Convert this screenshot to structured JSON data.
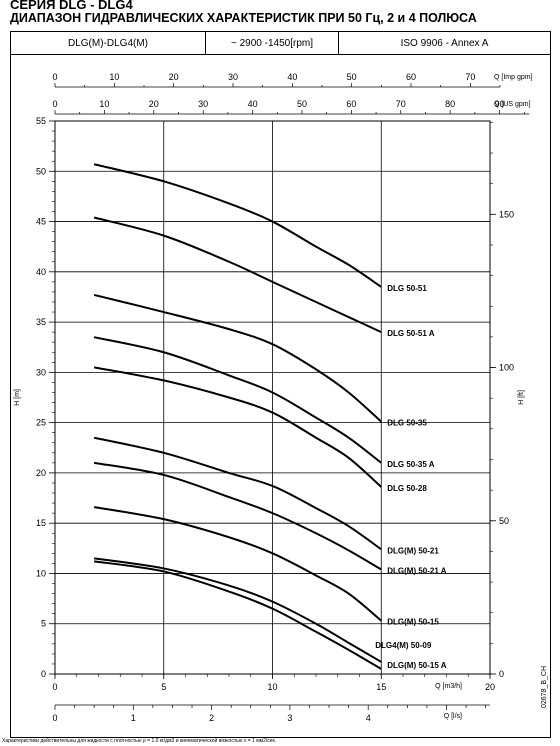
{
  "title": "СЕРИЯ DLG - DLG4",
  "subtitle": "ДИАПАЗОН ГИДРАВЛИЧЕСКИХ ХАРАКТЕРИСТИК ПРИ 50 Гц, 2 и 4 ПОЛЮСА",
  "header": {
    "model": "DLG(M)-DLG4(M)",
    "speed": "~ 2900 -1450[rpm]",
    "standard": "ISO 9906 - Annex A"
  },
  "footnote": "Характеристики действительны для жидкости с плотностью ρ = 1.0 кг/дм3 и кинематической вязкостью ν = 1 мм2/сек.",
  "drawing_code": "02678_B_CH",
  "chart_data": {
    "type": "line",
    "xlabel": "Q [m3/h]",
    "ylabel": "H [m]",
    "xlim": [
      0,
      20
    ],
    "ylim": [
      0,
      55
    ],
    "x_ticks": [
      "0",
      "5",
      "10",
      "15",
      "20"
    ],
    "y_ticks": [
      "0",
      "5",
      "10",
      "15",
      "20",
      "25",
      "30",
      "35",
      "40",
      "45",
      "50",
      "55"
    ],
    "grid": true,
    "right_axis": {
      "label": "H [ft]",
      "ticks": [
        "0",
        "50",
        "100",
        "150"
      ],
      "values": [
        0,
        50,
        100,
        150
      ]
    },
    "top_axes": [
      {
        "label": "Q [Imp gpm]",
        "ticks": [
          "0",
          "10",
          "20",
          "30",
          "40",
          "50",
          "60",
          "70"
        ],
        "values": [
          0,
          10,
          20,
          30,
          40,
          50,
          60,
          70
        ]
      },
      {
        "label": "Q [US gpm]",
        "ticks": [
          "0",
          "10",
          "20",
          "30",
          "40",
          "50",
          "60",
          "70",
          "80",
          "90"
        ],
        "values": [
          0,
          10,
          20,
          30,
          40,
          50,
          60,
          70,
          80,
          90
        ]
      }
    ],
    "bottom_axis2": {
      "label": "Q [l/s]",
      "ticks": [
        "0",
        "1",
        "2",
        "3",
        "4"
      ],
      "values": [
        0,
        1,
        2,
        3,
        4
      ]
    },
    "series": [
      {
        "name": "DLG 50-51",
        "x": [
          1.8,
          5,
          8,
          10,
          12,
          13.5,
          15
        ],
        "y": [
          50.7,
          49,
          46.8,
          45,
          42.5,
          40.7,
          38.5
        ]
      },
      {
        "name": "DLG 50-51 A",
        "x": [
          1.8,
          5,
          8,
          10,
          12,
          13.5,
          15
        ],
        "y": [
          45.4,
          43.6,
          41,
          39,
          37,
          35.5,
          34
        ]
      },
      {
        "name": "DLG 50-35",
        "x": [
          1.8,
          5,
          8,
          10,
          12,
          13.5,
          15
        ],
        "y": [
          37.7,
          36,
          34.3,
          32.8,
          30.3,
          28,
          25.1
        ]
      },
      {
        "name": "DLG 50-35 A",
        "x": [
          1.8,
          5,
          8,
          10,
          12,
          13.5,
          15
        ],
        "y": [
          33.5,
          32,
          29.7,
          28,
          25.5,
          23.5,
          21
        ]
      },
      {
        "name": "DLG 50-28",
        "x": [
          1.8,
          5,
          8,
          10,
          12,
          13.5,
          15
        ],
        "y": [
          30.5,
          29.2,
          27.5,
          26,
          23.5,
          21.5,
          18.6
        ]
      },
      {
        "name": "DLG(M) 50-21",
        "x": [
          1.8,
          5,
          8,
          10,
          12,
          13.5,
          15
        ],
        "y": [
          23.5,
          22,
          20,
          18.7,
          16.5,
          14.7,
          12.4
        ]
      },
      {
        "name": "DLG(M) 50-21 A",
        "x": [
          1.8,
          5,
          8,
          10,
          12,
          13.5,
          15
        ],
        "y": [
          21,
          19.8,
          17.6,
          16,
          14,
          12.3,
          10.4
        ]
      },
      {
        "name": "DLG(M) 50-15",
        "x": [
          1.8,
          5,
          8,
          10,
          12,
          13.5,
          15
        ],
        "y": [
          16.6,
          15.4,
          13.6,
          12,
          9.8,
          8,
          5.3
        ]
      },
      {
        "name": "DLG4(M) 50-09",
        "x": [
          1.8,
          5,
          8,
          10,
          12,
          13.5,
          15
        ],
        "y": [
          11.5,
          10.5,
          8.8,
          7.2,
          5,
          3.1,
          1.2
        ]
      },
      {
        "name": "DLG(M) 50-15 A",
        "x": [
          1.8,
          5,
          8,
          10,
          12,
          13.5,
          15
        ],
        "y": [
          11.2,
          10.2,
          8.2,
          6.5,
          4.2,
          2.4,
          0.5
        ]
      }
    ]
  }
}
